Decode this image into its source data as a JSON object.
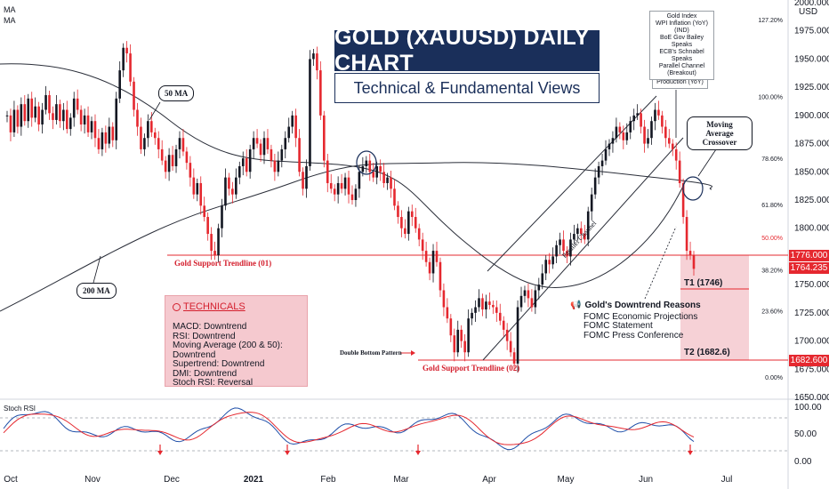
{
  "header": {
    "ma_label_1": "MA",
    "ma_label_2": "MA",
    "currency": "USD"
  },
  "title": {
    "main": "GOLD (XAUUSD) DAILY CHART",
    "sub": "Technical & Fundamental Views"
  },
  "colors": {
    "bull": "#131722",
    "bear": "#e5282f",
    "ma": "#2a2e39",
    "support": "#e5282f",
    "title_bg": "#1a2f5a",
    "target_zone": "#f5c9cf",
    "stoch_k": "#1e4ea8",
    "stoch_d": "#e5282f"
  },
  "price_axis": {
    "min": 1650,
    "max": 2000,
    "ticks": [
      "2000.000",
      "1975.000",
      "1950.000",
      "1925.000",
      "1900.000",
      "1875.000",
      "1850.000",
      "1825.000",
      "1800.000",
      "1776.000",
      "1750.000",
      "1725.000",
      "1700.000",
      "1682.600",
      "1675.000",
      "1650.000"
    ],
    "top_partial": "2000.000",
    "current_price": "1776.000",
    "current_price_2": "1764.235",
    "target_price": "1682.600"
  },
  "fib_levels": [
    {
      "label": "127.20%",
      "price": 1985
    },
    {
      "label": "100.00%",
      "price": 1917
    },
    {
      "label": "78.60%",
      "price": 1862
    },
    {
      "label": "61.80%",
      "price": 1821
    },
    {
      "label": "50.00%",
      "price": 1792
    },
    {
      "label": "38.20%",
      "price": 1763
    },
    {
      "label": "23.60%",
      "price": 1727
    },
    {
      "label": "0.00%",
      "price": 1668
    }
  ],
  "time_axis": [
    "Oct",
    "Nov",
    "Dec",
    "2021",
    "Feb",
    "Mar",
    "Apr",
    "May",
    "Jun",
    "Jul"
  ],
  "annotations": {
    "ma50": "50 MA",
    "ma200": "200 MA",
    "support1": "Gold Support Trendline (01)",
    "support2": "Gold Support Trendline (02)",
    "double_bottom": "Double Bottom Pattern",
    "parallel_channel": "Parallel Channel",
    "ma_crossover": "Moving Average Crossover",
    "t1": "T1 (1746)",
    "t2": "T2 (1682.6)",
    "manufacturing": "Manufacturing Production (YoY)",
    "gold_index": [
      "Gold Index",
      "WPI Inflation (YoY) (IND)",
      "BoE Gov Bailey Speaks",
      "ECB's Schnabel Speaks",
      "Parallel Channel (Breakout)"
    ]
  },
  "technicals": {
    "title": "TECHNICALS",
    "items": [
      "MACD: Downtrend",
      "RSI: Downtrend",
      "Moving Average (200 & 50): Downtrend",
      "Supertrend: Downtrend",
      "DMI: Downtrend",
      "Stoch RSI: Reversal"
    ]
  },
  "reasons": {
    "title": "Gold's Downtrend Reasons",
    "items": [
      "FOMC Economic Projections",
      "FOMC Statement",
      "FOMC Press Conference"
    ]
  },
  "stoch": {
    "label": "Stoch RSI",
    "ticks": [
      "100.00",
      "50.00",
      "0.00"
    ]
  },
  "chart_data": {
    "type": "candlestick",
    "ylim": [
      1650,
      2000
    ],
    "closes": [
      1900,
      1885,
      1905,
      1890,
      1910,
      1895,
      1915,
      1898,
      1908,
      1892,
      1905,
      1918,
      1902,
      1896,
      1910,
      1895,
      1905,
      1888,
      1898,
      1915,
      1905,
      1892,
      1900,
      1885,
      1895,
      1880,
      1870,
      1885,
      1875,
      1890,
      1878,
      1915,
      1940,
      1960,
      1955,
      1930,
      1905,
      1890,
      1870,
      1880,
      1895,
      1885,
      1880,
      1870,
      1860,
      1850,
      1865,
      1855,
      1870,
      1880,
      1868,
      1858,
      1845,
      1830,
      1840,
      1820,
      1810,
      1795,
      1780,
      1776,
      1800,
      1820,
      1845,
      1835,
      1830,
      1845,
      1855,
      1862,
      1850,
      1870,
      1880,
      1875,
      1865,
      1880,
      1870,
      1860,
      1850,
      1860,
      1870,
      1880,
      1890,
      1900,
      1880,
      1850,
      1835,
      1855,
      1950,
      1955,
      1940,
      1900,
      1860,
      1840,
      1835,
      1830,
      1840,
      1835,
      1845,
      1830,
      1825,
      1835,
      1850,
      1855,
      1860,
      1850,
      1845,
      1855,
      1850,
      1840,
      1845,
      1835,
      1820,
      1810,
      1800,
      1795,
      1815,
      1810,
      1800,
      1790,
      1780,
      1770,
      1760,
      1780,
      1770,
      1745,
      1730,
      1720,
      1705,
      1690,
      1710,
      1700,
      1690,
      1720,
      1725,
      1730,
      1738,
      1728,
      1735,
      1732,
      1730,
      1725,
      1718,
      1710,
      1700,
      1690,
      1680,
      1730,
      1740,
      1745,
      1738,
      1730,
      1745,
      1750,
      1760,
      1772,
      1768,
      1775,
      1785,
      1790,
      1780,
      1775,
      1790,
      1795,
      1800,
      1795,
      1790,
      1815,
      1830,
      1845,
      1855,
      1860,
      1870,
      1875,
      1880,
      1890,
      1885,
      1878,
      1885,
      1895,
      1900,
      1902,
      1890,
      1875,
      1880,
      1895,
      1905,
      1900,
      1890,
      1880,
      1875,
      1870,
      1860,
      1840,
      1810,
      1780,
      1776,
      1764
    ],
    "support_lines": [
      1776,
      1682.6
    ],
    "targets": {
      "T1": 1746,
      "T2": 1682.6
    }
  }
}
